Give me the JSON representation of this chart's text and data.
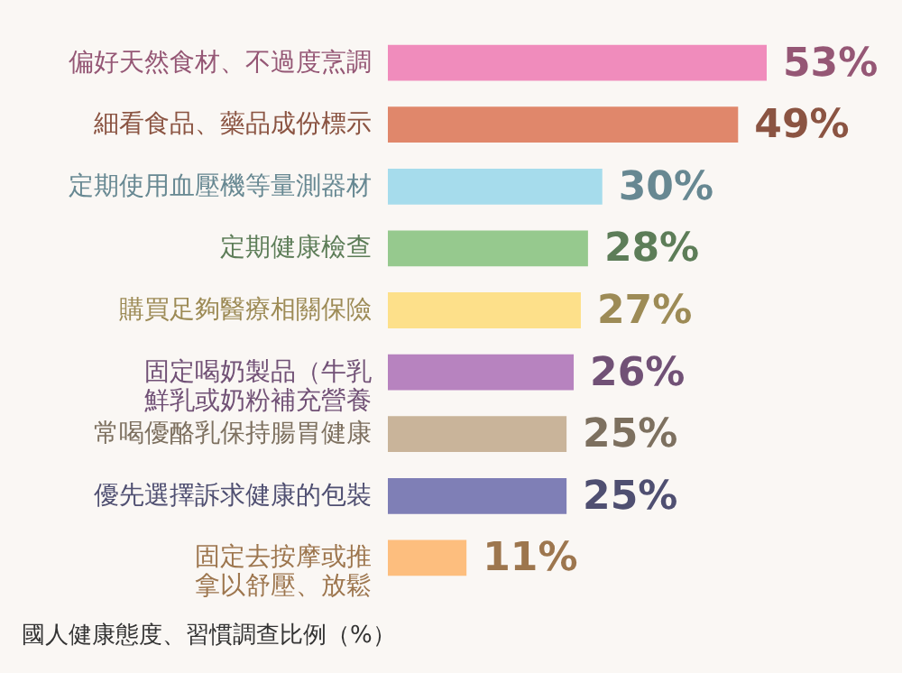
{
  "chart_data": {
    "type": "bar",
    "orientation": "horizontal",
    "categories": [
      "偏好天然食材、不過度烹調",
      "細看食品、藥品成份標示",
      "定期使用血壓機等量測器材",
      "定期健康檢查",
      "購買足夠醫療相關保險",
      "固定喝奶製品（牛乳鮮乳或奶粉補充營養",
      "常喝優酪乳保持腸胃健康",
      "優先選擇訴求健康的包裝",
      "固定去按摩或推拿以舒壓、放鬆"
    ],
    "values": [
      53,
      49,
      30,
      28,
      27,
      26,
      25,
      25,
      11
    ],
    "colors": [
      "#f08cbc",
      "#e0876b",
      "#a6dcec",
      "#96c98e",
      "#fde08a",
      "#b783bf",
      "#c9b49a",
      "#7f7fb6",
      "#fdbe7e"
    ],
    "value_labels": [
      "53%",
      "49%",
      "30%",
      "28%",
      "27%",
      "26%",
      "25%",
      "25%",
      "11%"
    ],
    "annotations": [
      "國人健康態度、習慣調查比例（%）"
    ]
  }
}
